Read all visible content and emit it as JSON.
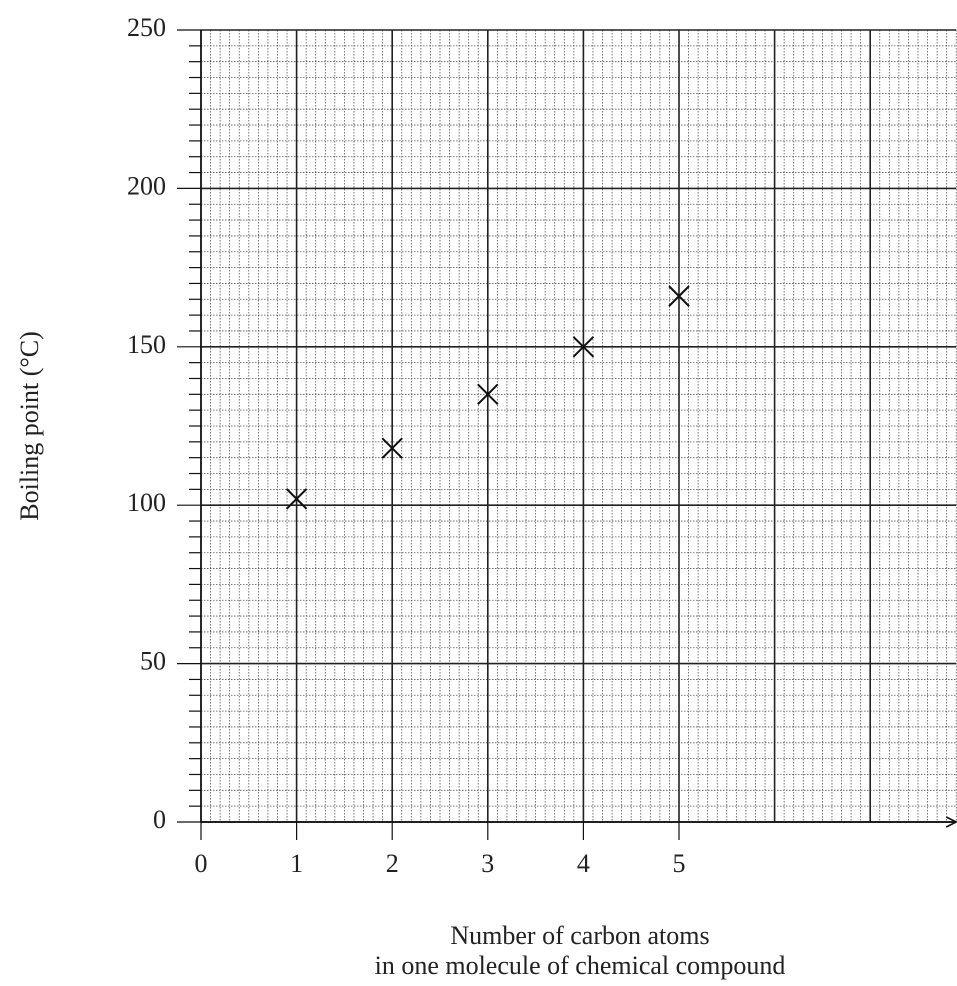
{
  "chart_data": {
    "type": "scatter",
    "xlabel": [
      "Number of carbon atoms",
      "in one molecule of chemical compound"
    ],
    "ylabel": "Boiling point (°C)",
    "series": [
      {
        "x": [
          1,
          2,
          3,
          4,
          5
        ],
        "values": [
          102,
          118,
          135,
          150,
          166
        ],
        "color": "#111111",
        "marker": "x"
      }
    ],
    "xlim": [
      0,
      7.9
    ],
    "xticks": [
      0,
      1,
      2,
      3,
      4,
      5
    ],
    "ylim": [
      0,
      250
    ],
    "yticks": [
      0,
      50,
      100,
      150,
      200,
      250
    ],
    "grid": true
  }
}
